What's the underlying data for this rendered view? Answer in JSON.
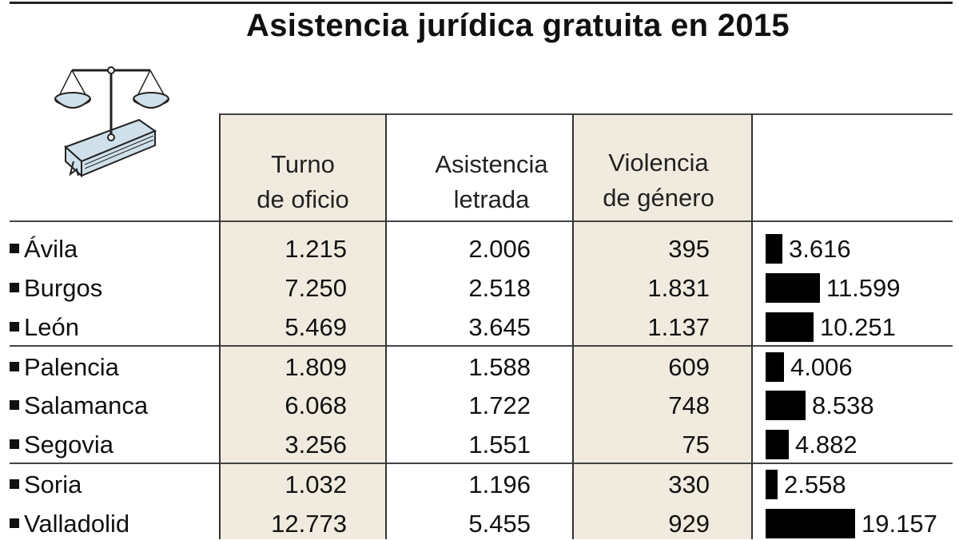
{
  "title": "Asistencia jurídica gratuita en 2015",
  "headers": {
    "turno": [
      "Turno",
      "de oficio"
    ],
    "asistencia": [
      "Asistencia",
      "letrada"
    ],
    "violencia": [
      "Violencia",
      "de género"
    ]
  },
  "rows": [
    {
      "name": "Ávila",
      "turno": "1.215",
      "asistencia": "2.006",
      "violencia": "395",
      "total": "3.616"
    },
    {
      "name": "Burgos",
      "turno": "7.250",
      "asistencia": "2.518",
      "violencia": "1.831",
      "total": "11.599"
    },
    {
      "name": "León",
      "turno": "5.469",
      "asistencia": "3.645",
      "violencia": "1.137",
      "total": "10.251"
    },
    {
      "name": "Palencia",
      "turno": "1.809",
      "asistencia": "1.588",
      "violencia": "609",
      "total": "4.006"
    },
    {
      "name": "Salamanca",
      "turno": "6.068",
      "asistencia": "1.722",
      "violencia": "748",
      "total": "8.538"
    },
    {
      "name": "Segovia",
      "turno": "3.256",
      "asistencia": "1.551",
      "violencia": "75",
      "total": "4.882"
    },
    {
      "name": "Soria",
      "turno": "1.032",
      "asistencia": "1.196",
      "violencia": "330",
      "total": "2.558"
    },
    {
      "name": "Valladolid",
      "turno": "12.773",
      "asistencia": "5.455",
      "violencia": "929",
      "total": "19.157"
    }
  ],
  "chart_data": {
    "type": "table",
    "title": "Asistencia jurídica gratuita en 2015",
    "columns": [
      "Turno de oficio",
      "Asistencia letrada",
      "Violencia de género",
      ""
    ],
    "categories": [
      "Ávila",
      "Burgos",
      "León",
      "Palencia",
      "Salamanca",
      "Segovia",
      "Soria",
      "Valladolid"
    ],
    "series": [
      {
        "name": "Turno de oficio",
        "values": [
          1215,
          7250,
          5469,
          1809,
          6068,
          3256,
          1032,
          12773
        ]
      },
      {
        "name": "Asistencia letrada",
        "values": [
          2006,
          2518,
          3645,
          1588,
          1722,
          1551,
          1196,
          5455
        ]
      },
      {
        "name": "Violencia de género",
        "values": [
          395,
          1831,
          1137,
          609,
          748,
          75,
          330,
          929
        ]
      },
      {
        "values": [
          3616,
          11599,
          10251,
          4006,
          8538,
          4882,
          2558,
          19157
        ]
      }
    ],
    "bar_column_max": 19157,
    "colors": {
      "shaded_column": "#f1ebdf",
      "bar": "#000000"
    }
  },
  "icons": {
    "illustration": "scales-of-justice-on-book-icon"
  }
}
